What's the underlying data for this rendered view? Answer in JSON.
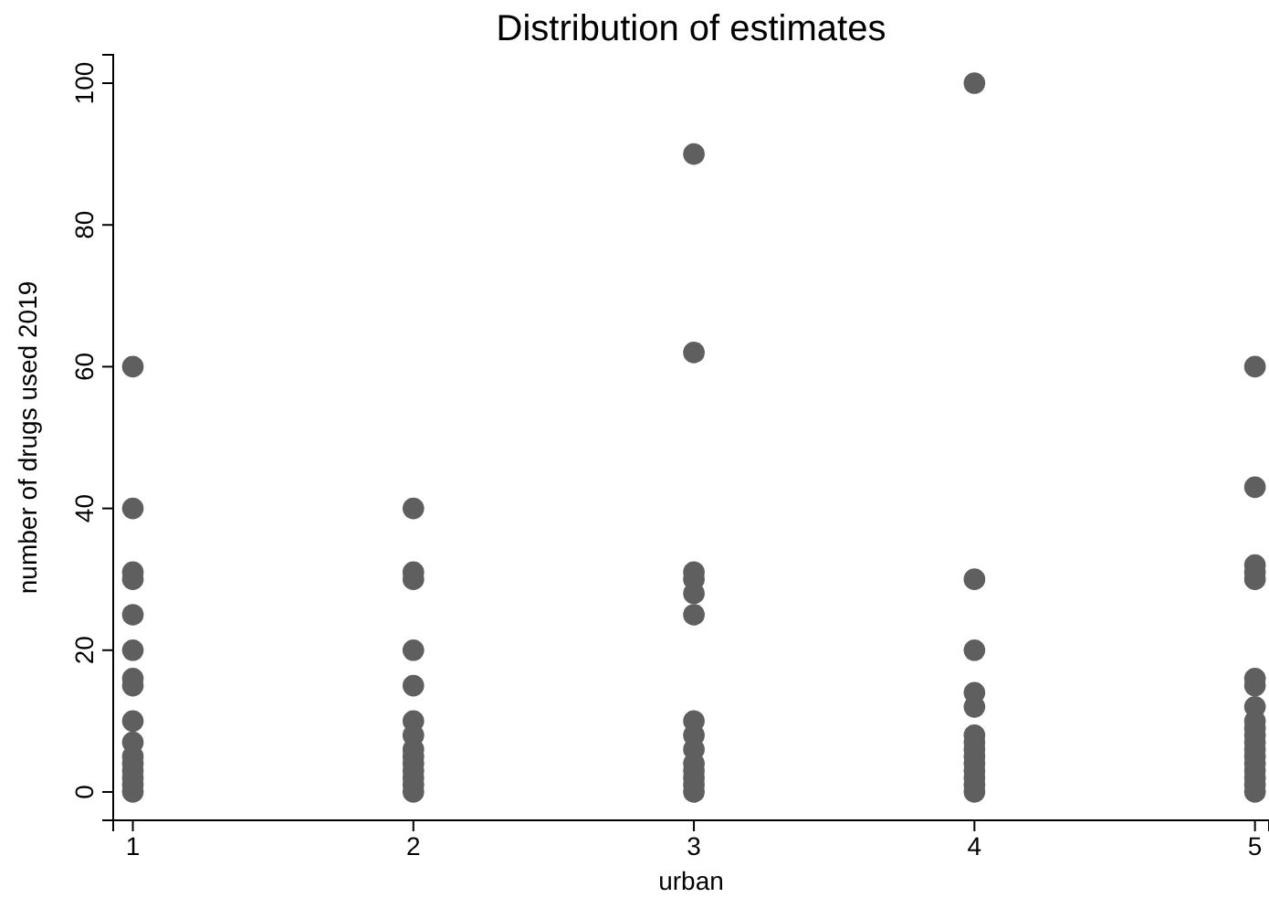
{
  "chart_data": {
    "type": "scatter",
    "title": "Distribution of estimates",
    "xlabel": "urban",
    "ylabel": "number of drugs used 2019",
    "series": [
      {
        "color": "#5f5f5f",
        "x": [
          1,
          1,
          1,
          1,
          1,
          1,
          1,
          1,
          1,
          1,
          1,
          1,
          1,
          1,
          1,
          1,
          2,
          2,
          2,
          2,
          2,
          2,
          2,
          2,
          2,
          2,
          2,
          2,
          2,
          2,
          3,
          3,
          3,
          3,
          3,
          3,
          3,
          3,
          3,
          3,
          3,
          3,
          3,
          3,
          4,
          4,
          4,
          4,
          4,
          4,
          4,
          4,
          4,
          4,
          4,
          4,
          4,
          4,
          5,
          5,
          5,
          5,
          5,
          5,
          5,
          5,
          5,
          5,
          5,
          5,
          5,
          5,
          5,
          5,
          5,
          5,
          5
        ],
        "values": [
          60,
          40,
          31,
          30,
          25,
          20,
          16,
          15,
          10,
          7,
          5,
          4,
          3,
          2,
          1,
          0,
          40,
          31,
          30,
          20,
          15,
          10,
          8,
          6,
          5,
          4,
          3,
          2,
          1,
          0,
          90,
          62,
          31,
          30,
          28,
          25,
          10,
          8,
          6,
          4,
          3,
          2,
          1,
          0,
          100,
          30,
          20,
          14,
          12,
          8,
          7,
          6,
          5,
          4,
          3,
          2,
          1,
          0,
          60,
          43,
          32,
          31,
          30,
          16,
          15,
          12,
          10,
          9,
          8,
          7,
          6,
          5,
          4,
          3,
          2,
          1,
          0
        ]
      }
    ],
    "xlim": [
      0.93,
      5.05
    ],
    "xticks": [
      1,
      2,
      3,
      4,
      5
    ],
    "ylim": [
      -4,
      104
    ],
    "yticks": [
      0,
      20,
      40,
      60,
      80,
      100
    ],
    "grid": false,
    "marker": "circle"
  }
}
